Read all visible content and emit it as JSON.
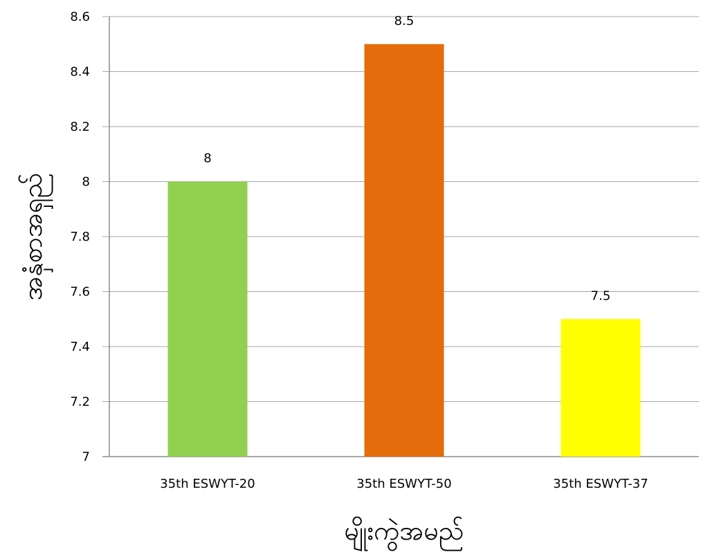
{
  "chart_data": {
    "type": "bar",
    "title": "",
    "xlabel": "မျိုးကွဲအမည်",
    "ylabel": "အနှံစာအရှည်",
    "categories": [
      "35th ESWYT-20",
      "35th ESWYT-50",
      "35th ESWYT-37"
    ],
    "values": [
      8,
      8.5,
      7.5
    ],
    "data_labels": [
      "8",
      "8.5",
      "7.5"
    ],
    "colors": [
      "#92d050",
      "#e46c0a",
      "#ffff00"
    ],
    "ylim": [
      7,
      8.6
    ],
    "yticks": [
      7,
      7.2,
      7.4,
      7.6,
      7.8,
      8,
      8.2,
      8.4,
      8.6
    ],
    "ytick_labels": [
      "7",
      "7.2",
      "7.4",
      "7.6",
      "7.8",
      "8",
      "8.2",
      "8.4",
      "8.6"
    ],
    "grid": true,
    "legend": "none"
  }
}
